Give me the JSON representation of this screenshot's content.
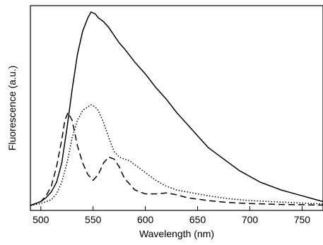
{
  "chart_data": {
    "type": "line",
    "title": "",
    "xlabel": "Wavelength (nm)",
    "ylabel": "Fluorescence (a.u.)",
    "xlim": [
      490,
      770
    ],
    "ylim": [
      0,
      1.0
    ],
    "xticks": [
      500,
      550,
      600,
      650,
      700,
      750
    ],
    "xtick_labels": [
      "500",
      "550",
      "600",
      "650",
      "700",
      "750"
    ],
    "yticks": [],
    "grid": false,
    "legend": "none",
    "series": [
      {
        "style": "solid",
        "x": [
          490,
          500,
          505,
          510,
          515,
          520,
          525,
          530,
          535,
          540,
          545,
          548,
          552,
          555,
          560,
          565,
          570,
          575,
          580,
          590,
          600,
          610,
          620,
          630,
          640,
          650,
          660,
          670,
          680,
          690,
          700,
          710,
          720,
          730,
          740,
          750,
          760,
          770
        ],
        "y": [
          0.0,
          0.02,
          0.04,
          0.07,
          0.12,
          0.22,
          0.4,
          0.6,
          0.78,
          0.9,
          0.97,
          1.0,
          0.99,
          0.97,
          0.95,
          0.92,
          0.88,
          0.84,
          0.81,
          0.74,
          0.68,
          0.61,
          0.55,
          0.48,
          0.42,
          0.36,
          0.3,
          0.26,
          0.22,
          0.18,
          0.15,
          0.12,
          0.1,
          0.08,
          0.065,
          0.05,
          0.035,
          0.02
        ]
      },
      {
        "style": "dotted",
        "x": [
          490,
          500,
          510,
          515,
          520,
          525,
          530,
          535,
          540,
          545,
          548,
          552,
          555,
          560,
          565,
          570,
          575,
          580,
          585,
          590,
          600,
          610,
          620,
          630,
          640,
          650,
          660,
          680,
          700,
          720,
          740,
          760,
          770
        ],
        "y": [
          0.0,
          0.01,
          0.03,
          0.06,
          0.12,
          0.22,
          0.35,
          0.44,
          0.49,
          0.51,
          0.52,
          0.51,
          0.49,
          0.43,
          0.35,
          0.28,
          0.25,
          0.24,
          0.23,
          0.21,
          0.17,
          0.13,
          0.1,
          0.08,
          0.07,
          0.06,
          0.05,
          0.035,
          0.025,
          0.02,
          0.015,
          0.01,
          0.008
        ]
      },
      {
        "style": "dashed",
        "x": [
          490,
          500,
          505,
          510,
          515,
          520,
          523,
          526,
          530,
          535,
          540,
          545,
          550,
          555,
          560,
          565,
          570,
          575,
          580,
          590,
          600,
          610,
          620,
          630,
          640,
          660,
          680,
          700,
          730,
          760,
          770
        ],
        "y": [
          0.0,
          0.02,
          0.05,
          0.1,
          0.2,
          0.34,
          0.44,
          0.48,
          0.44,
          0.31,
          0.22,
          0.16,
          0.13,
          0.16,
          0.22,
          0.25,
          0.24,
          0.2,
          0.14,
          0.08,
          0.06,
          0.06,
          0.065,
          0.055,
          0.04,
          0.025,
          0.015,
          0.01,
          0.005,
          0.003,
          0.002
        ]
      }
    ]
  }
}
